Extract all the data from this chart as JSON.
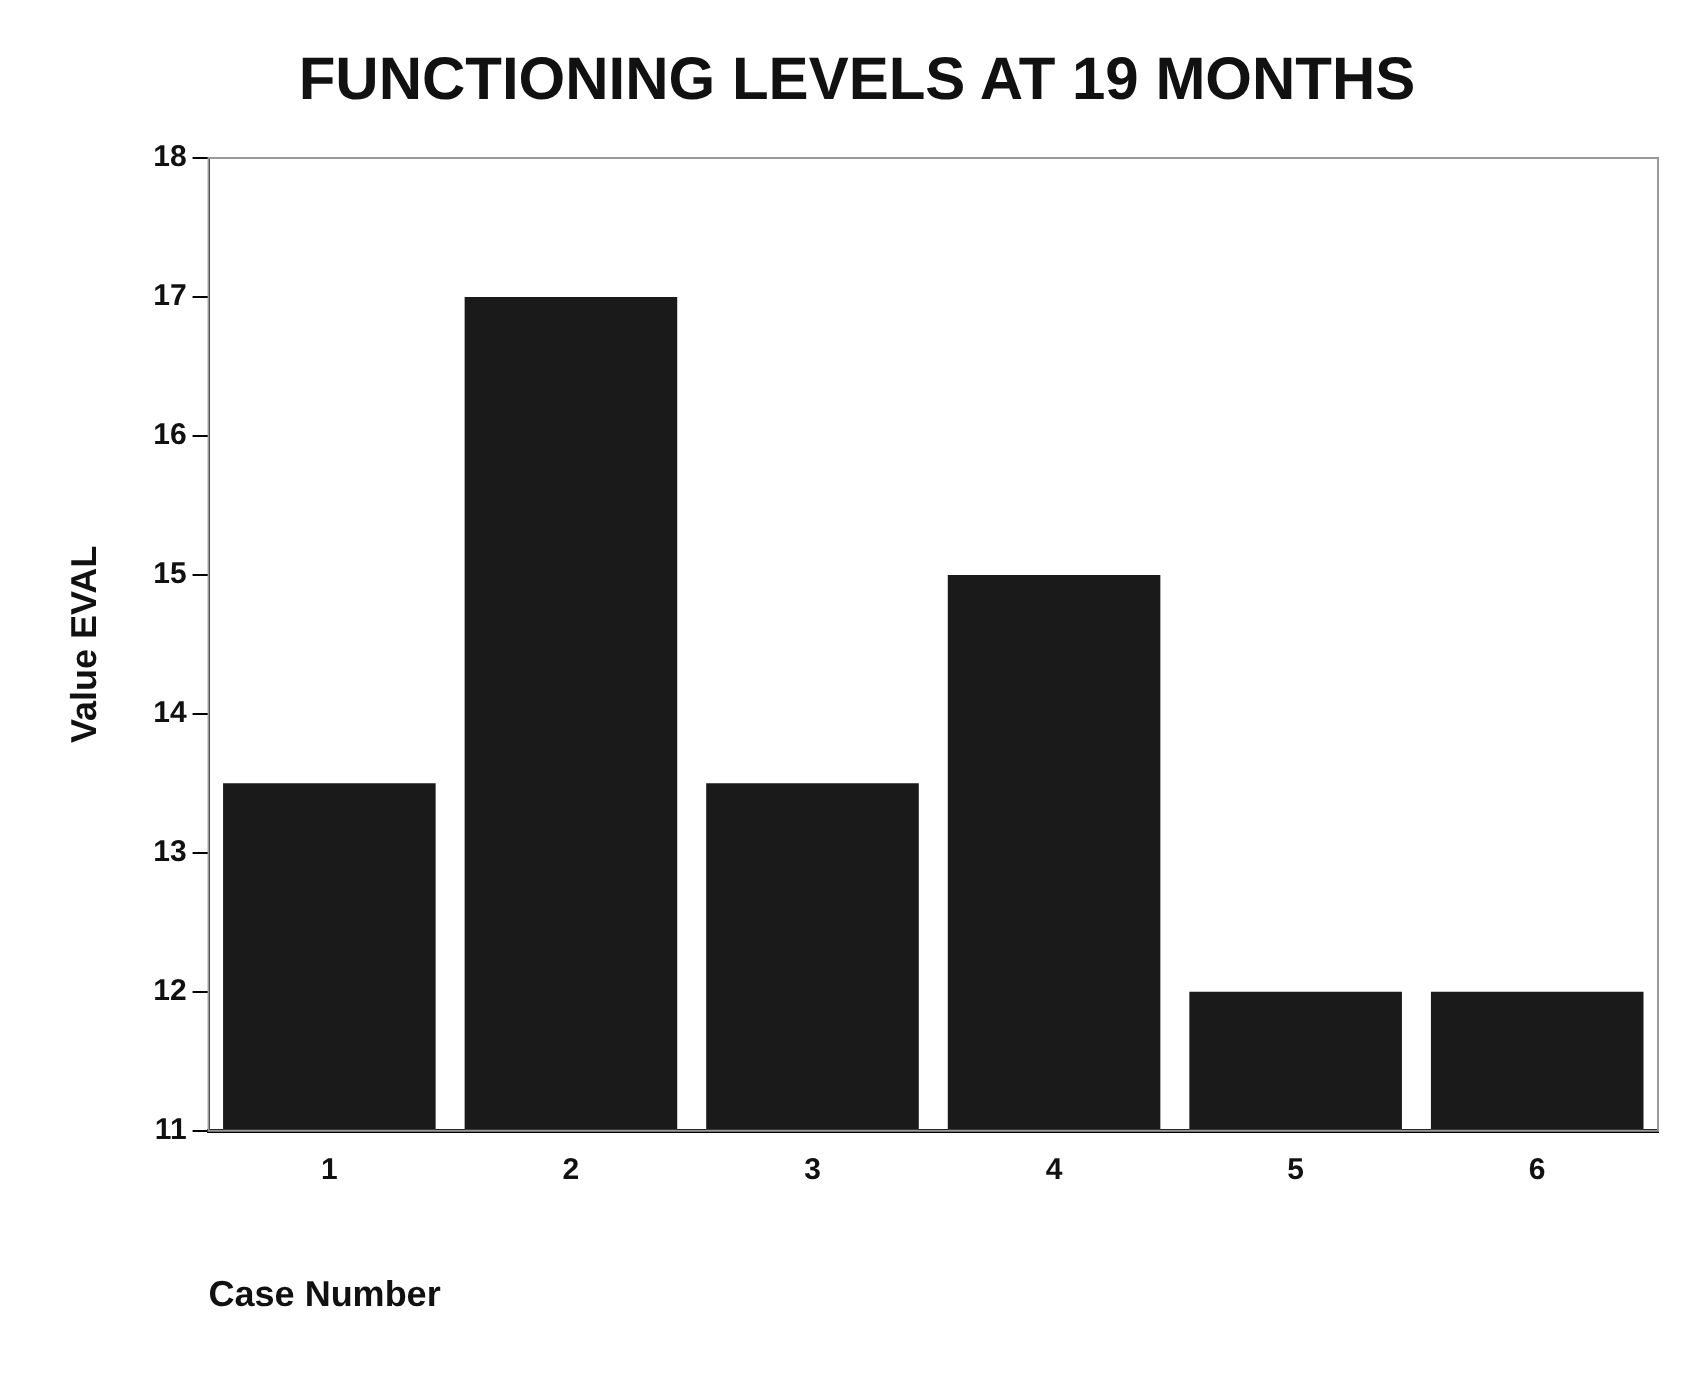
{
  "chart_data": {
    "type": "bar",
    "title": "FUNCTIONING LEVELS AT 19 MONTHS",
    "xlabel": "Case Number",
    "ylabel": "Value EVAL",
    "categories": [
      "1",
      "2",
      "3",
      "4",
      "5",
      "6"
    ],
    "values": [
      13.5,
      17,
      13.5,
      15,
      12,
      12
    ],
    "color": "#1a1a1a",
    "ylim": [
      11,
      18
    ],
    "yticks": [
      11,
      12,
      13,
      14,
      15,
      16,
      17,
      18
    ],
    "grid": false,
    "legend": false
  }
}
